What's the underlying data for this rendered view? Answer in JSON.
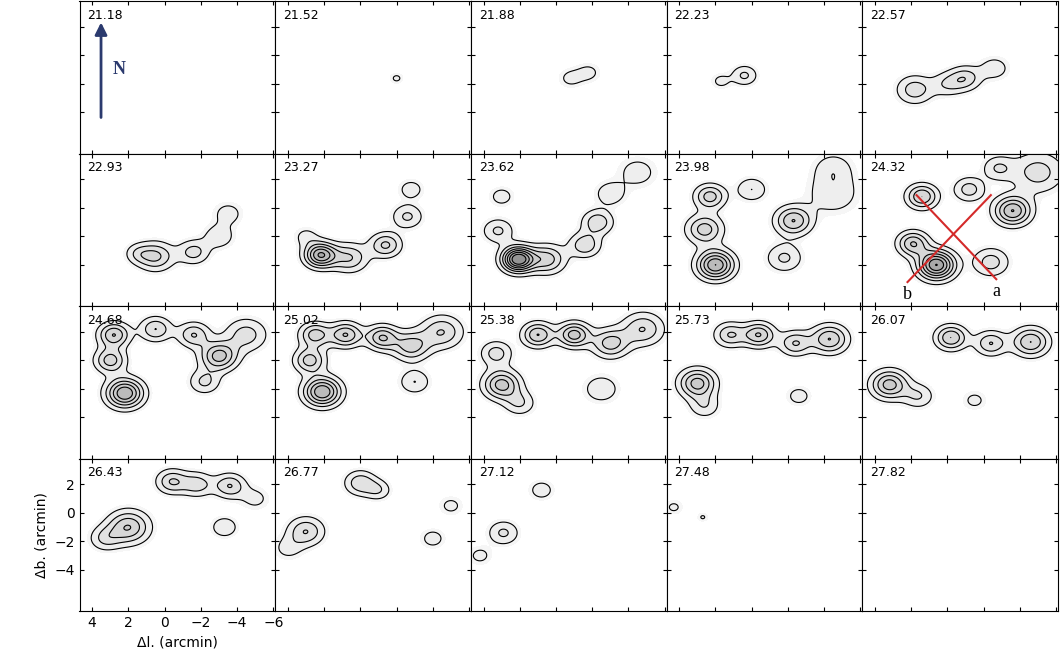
{
  "chart_data": {
    "type": "contour",
    "xlabel": "Δl. (arcmin)",
    "ylabel": "Δb. (arcmin)",
    "xlim": [
      4.7,
      -6.1
    ],
    "ylim": [
      -6.9,
      3.8
    ],
    "xticks": [
      4,
      2,
      0,
      {
        "value": -2,
        "label": "−2"
      },
      {
        "value": -4,
        "label": "−4"
      },
      {
        "value": -6,
        "label": "−6"
      }
    ],
    "yticks": [
      2,
      0,
      {
        "value": -2,
        "label": "−2"
      },
      {
        "value": -4,
        "label": "−4"
      }
    ],
    "levels": [
      1,
      2,
      3,
      4,
      5,
      6,
      7
    ],
    "color": "#000000",
    "north": {
      "label": "N",
      "panel": "21.18",
      "color": "#2b3a6e"
    },
    "panels": [
      {
        "label": "21.18",
        "components": []
      },
      {
        "label": "21.52",
        "components": [
          {
            "l": -2.0,
            "b": -1.6,
            "amp": 1.2,
            "sigma": 0.3
          }
        ]
      },
      {
        "label": "21.88",
        "components": [
          {
            "l": -0.8,
            "b": -1.6,
            "amp": 1.3,
            "sigma": 0.5
          },
          {
            "l": -1.8,
            "b": -1.2,
            "amp": 1.3,
            "sigma": 0.5
          }
        ]
      },
      {
        "label": "22.23",
        "components": [
          {
            "l": 0.4,
            "b": -1.4,
            "amp": 2.2,
            "sigma": 0.5
          },
          {
            "l": 1.7,
            "b": -1.8,
            "amp": 1.3,
            "sigma": 0.4
          }
        ]
      },
      {
        "label": "22.57",
        "components": [
          {
            "l": 1.8,
            "b": -2.4,
            "amp": 2.6,
            "sigma": 0.7
          },
          {
            "l": 0.0,
            "b": -2.0,
            "amp": 1.8,
            "sigma": 0.6
          },
          {
            "l": -1.0,
            "b": -1.6,
            "amp": 2.6,
            "sigma": 0.6
          },
          {
            "l": -2.6,
            "b": -0.9,
            "amp": 1.6,
            "sigma": 0.6
          }
        ]
      },
      {
        "label": "22.93",
        "components": [
          {
            "l": 0.5,
            "b": -3.4,
            "amp": 3.2,
            "sigma": 0.7
          },
          {
            "l": -1.6,
            "b": -3.1,
            "amp": 2.4,
            "sigma": 0.6
          },
          {
            "l": -3.0,
            "b": -2.0,
            "amp": 1.8,
            "sigma": 0.6
          },
          {
            "l": -3.5,
            "b": -0.4,
            "amp": 1.5,
            "sigma": 0.6
          },
          {
            "l": 1.5,
            "b": -3.2,
            "amp": 1.5,
            "sigma": 0.5
          }
        ]
      },
      {
        "label": "23.27",
        "components": [
          {
            "l": 2.2,
            "b": -3.3,
            "amp": 6,
            "sigma": 0.6
          },
          {
            "l": 0.6,
            "b": -3.5,
            "amp": 3,
            "sigma": 0.7
          },
          {
            "l": -1.4,
            "b": -2.6,
            "amp": 3.2,
            "sigma": 0.6
          },
          {
            "l": -2.6,
            "b": -0.6,
            "amp": 2.2,
            "sigma": 0.6
          },
          {
            "l": -2.8,
            "b": 1.3,
            "amp": 1.6,
            "sigma": 0.5
          },
          {
            "l": 3.0,
            "b": -2.0,
            "amp": 1.3,
            "sigma": 0.5
          }
        ]
      },
      {
        "label": "23.62",
        "components": [
          {
            "l": 2.1,
            "b": -3.6,
            "amp": 8,
            "sigma": 0.6
          },
          {
            "l": 0.5,
            "b": -3.6,
            "amp": 3.5,
            "sigma": 0.7
          },
          {
            "l": 3.2,
            "b": -1.6,
            "amp": 2.2,
            "sigma": 0.6
          },
          {
            "l": 3.0,
            "b": 0.8,
            "amp": 1.5,
            "sigma": 0.5
          },
          {
            "l": -1.6,
            "b": -2.6,
            "amp": 2.8,
            "sigma": 0.6
          },
          {
            "l": -2.3,
            "b": -1.0,
            "amp": 2.8,
            "sigma": 0.6
          },
          {
            "l": -3.0,
            "b": 1.0,
            "amp": 1.8,
            "sigma": 0.6
          },
          {
            "l": -4.5,
            "b": 2.5,
            "amp": 1.5,
            "sigma": 0.8
          }
        ]
      },
      {
        "label": "23.98",
        "components": [
          {
            "l": 2.0,
            "b": -4.0,
            "amp": 6,
            "sigma": 0.7
          },
          {
            "l": 2.6,
            "b": -1.5,
            "amp": 3.5,
            "sigma": 0.7
          },
          {
            "l": 2.3,
            "b": 0.8,
            "amp": 3.5,
            "sigma": 0.6
          },
          {
            "l": 0.0,
            "b": 1.3,
            "amp": 2.0,
            "sigma": 0.6
          },
          {
            "l": -2.3,
            "b": -0.9,
            "amp": 4,
            "sigma": 0.7
          },
          {
            "l": -1.8,
            "b": -3.5,
            "amp": 2.2,
            "sigma": 0.7
          },
          {
            "l": -4.5,
            "b": 1.0,
            "amp": 1.8,
            "sigma": 1.0
          },
          {
            "l": -4.5,
            "b": 2.8,
            "amp": 1.5,
            "sigma": 0.8
          }
        ]
      },
      {
        "label": "24.32",
        "components": [
          {
            "l": 0.6,
            "b": -4.0,
            "amp": 7,
            "sigma": 0.7
          },
          {
            "l": 1.9,
            "b": -2.5,
            "amp": 4,
            "sigma": 0.6
          },
          {
            "l": 1.4,
            "b": 0.8,
            "amp": 4,
            "sigma": 0.6
          },
          {
            "l": -1.2,
            "b": 1.3,
            "amp": 2.5,
            "sigma": 0.6
          },
          {
            "l": -3.6,
            "b": -0.2,
            "amp": 5,
            "sigma": 0.7
          },
          {
            "l": -2.4,
            "b": -3.8,
            "amp": 2.5,
            "sigma": 0.7
          },
          {
            "l": -5.0,
            "b": 2.5,
            "amp": 2.5,
            "sigma": 1.0
          },
          {
            "l": -2.8,
            "b": 2.8,
            "amp": 2.0,
            "sigma": 0.6
          }
        ],
        "cuts": [
          {
            "name": "a",
            "start": [
              1.7,
              0.9
            ],
            "end": [
              -2.7,
              -5.0
            ],
            "color": "#d42a2a"
          },
          {
            "name": "b",
            "start": [
              2.2,
              -5.2
            ],
            "end": [
              -2.4,
              0.9
            ],
            "color": "#d42a2a"
          }
        ]
      },
      {
        "label": "24.68",
        "components": [
          {
            "l": 2.2,
            "b": -2.3,
            "amp": 6,
            "sigma": 0.7
          },
          {
            "l": 3.0,
            "b": 0.0,
            "amp": 3.5,
            "sigma": 0.6
          },
          {
            "l": 2.8,
            "b": 1.8,
            "amp": 4,
            "sigma": 0.6
          },
          {
            "l": 0.5,
            "b": 2.2,
            "amp": 3,
            "sigma": 0.6
          },
          {
            "l": -1.6,
            "b": 1.8,
            "amp": 3,
            "sigma": 0.6
          },
          {
            "l": -3.0,
            "b": 0.3,
            "amp": 4.5,
            "sigma": 0.7
          },
          {
            "l": -4.5,
            "b": 1.8,
            "amp": 2.5,
            "sigma": 0.8
          },
          {
            "l": -2.2,
            "b": -1.5,
            "amp": 2.2,
            "sigma": 0.6
          }
        ]
      },
      {
        "label": "25.02",
        "components": [
          {
            "l": 2.1,
            "b": -2.2,
            "amp": 6,
            "sigma": 0.7
          },
          {
            "l": 2.8,
            "b": 0.0,
            "amp": 3.5,
            "sigma": 0.6
          },
          {
            "l": 2.5,
            "b": 1.8,
            "amp": 3.5,
            "sigma": 0.6
          },
          {
            "l": 0.8,
            "b": 1.8,
            "amp": 4,
            "sigma": 0.6
          },
          {
            "l": -1.2,
            "b": 1.6,
            "amp": 4,
            "sigma": 0.6
          },
          {
            "l": -2.8,
            "b": 1.0,
            "amp": 3.5,
            "sigma": 0.7
          },
          {
            "l": -4.5,
            "b": 2.0,
            "amp": 3,
            "sigma": 0.8
          },
          {
            "l": -3.0,
            "b": -1.5,
            "amp": 2,
            "sigma": 0.6
          }
        ]
      },
      {
        "label": "25.38",
        "components": [
          {
            "l": 3.0,
            "b": -1.7,
            "amp": 4.5,
            "sigma": 0.7
          },
          {
            "l": 2.0,
            "b": -3.0,
            "amp": 2,
            "sigma": 0.6
          },
          {
            "l": 3.3,
            "b": 0.5,
            "amp": 2.5,
            "sigma": 0.6
          },
          {
            "l": 1.0,
            "b": 1.8,
            "amp": 4,
            "sigma": 0.6
          },
          {
            "l": -1.0,
            "b": 1.8,
            "amp": 4.5,
            "sigma": 0.6
          },
          {
            "l": -3.0,
            "b": 1.2,
            "amp": 3.5,
            "sigma": 0.7
          },
          {
            "l": -4.8,
            "b": 2.2,
            "amp": 3,
            "sigma": 0.8
          },
          {
            "l": -2.5,
            "b": -2.0,
            "amp": 1.8,
            "sigma": 0.7
          }
        ]
      },
      {
        "label": "25.73",
        "components": [
          {
            "l": 3.0,
            "b": -1.6,
            "amp": 4.5,
            "sigma": 0.7
          },
          {
            "l": 2.6,
            "b": -3.2,
            "amp": 1.8,
            "sigma": 0.6
          },
          {
            "l": 1.2,
            "b": 1.8,
            "amp": 3,
            "sigma": 0.6
          },
          {
            "l": -0.4,
            "b": 1.8,
            "amp": 4,
            "sigma": 0.6
          },
          {
            "l": -2.4,
            "b": 1.2,
            "amp": 3,
            "sigma": 0.6
          },
          {
            "l": -4.3,
            "b": 1.5,
            "amp": 4,
            "sigma": 0.7
          },
          {
            "l": -2.6,
            "b": -2.5,
            "amp": 1.5,
            "sigma": 0.5
          }
        ]
      },
      {
        "label": "26.07",
        "components": [
          {
            "l": 3.2,
            "b": -1.7,
            "amp": 4.5,
            "sigma": 0.7
          },
          {
            "l": 1.6,
            "b": -2.5,
            "amp": 2,
            "sigma": 0.6
          },
          {
            "l": -0.2,
            "b": 1.6,
            "amp": 4,
            "sigma": 0.6
          },
          {
            "l": -2.4,
            "b": 1.2,
            "amp": 3,
            "sigma": 0.6
          },
          {
            "l": -4.6,
            "b": 1.3,
            "amp": 4,
            "sigma": 0.7
          },
          {
            "l": -1.5,
            "b": -2.8,
            "amp": 1.3,
            "sigma": 0.5
          }
        ]
      },
      {
        "label": "26.43",
        "components": [
          {
            "l": 2.0,
            "b": -1.0,
            "amp": 4,
            "sigma": 0.8
          },
          {
            "l": 3.3,
            "b": -1.8,
            "amp": 2,
            "sigma": 0.6
          },
          {
            "l": -0.4,
            "b": 2.2,
            "amp": 3,
            "sigma": 0.6
          },
          {
            "l": -1.8,
            "b": 2.0,
            "amp": 2.5,
            "sigma": 0.6
          },
          {
            "l": -3.6,
            "b": 1.9,
            "amp": 3,
            "sigma": 0.6
          },
          {
            "l": -3.3,
            "b": -1.0,
            "amp": 2,
            "sigma": 0.5
          },
          {
            "l": -5.0,
            "b": 1.0,
            "amp": 1.3,
            "sigma": 0.6
          }
        ]
      },
      {
        "label": "26.77",
        "components": [
          {
            "l": 3.0,
            "b": -1.3,
            "amp": 3,
            "sigma": 0.7
          },
          {
            "l": 0.0,
            "b": 2.1,
            "amp": 2.8,
            "sigma": 0.6
          },
          {
            "l": -1.0,
            "b": 1.6,
            "amp": 1.8,
            "sigma": 0.5
          },
          {
            "l": -4.0,
            "b": -1.8,
            "amp": 1.5,
            "sigma": 0.5
          },
          {
            "l": -5.0,
            "b": 0.5,
            "amp": 1.3,
            "sigma": 0.5
          },
          {
            "l": 4.0,
            "b": -2.5,
            "amp": 1.3,
            "sigma": 0.6
          }
        ]
      },
      {
        "label": "27.12",
        "components": [
          {
            "l": 2.9,
            "b": -1.4,
            "amp": 2.2,
            "sigma": 0.6
          },
          {
            "l": 0.8,
            "b": 1.6,
            "amp": 1.6,
            "sigma": 0.5
          },
          {
            "l": 4.2,
            "b": -3.0,
            "amp": 1.3,
            "sigma": 0.5
          }
        ]
      },
      {
        "label": "27.48",
        "components": [
          {
            "l": 4.3,
            "b": 0.4,
            "amp": 1.2,
            "sigma": 0.4
          },
          {
            "l": 2.7,
            "b": -0.3,
            "amp": 1.1,
            "sigma": 0.25
          }
        ]
      },
      {
        "label": "27.82",
        "components": []
      }
    ]
  }
}
